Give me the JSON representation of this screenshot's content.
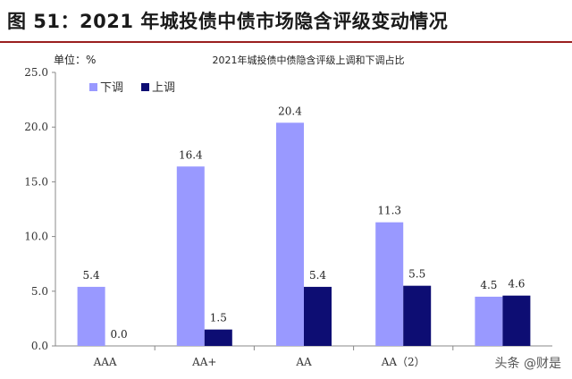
{
  "figure_title": "图 51：2021 年城投债中债市场隐含评级变动情况",
  "watermark": "头条 @财是",
  "chart_data": {
    "type": "bar",
    "title": "2021年城投债中债隐含评级上调和下调占比",
    "unit_label": "单位：%",
    "categories": [
      "AAA",
      "AA+",
      "AA",
      "AA（2）",
      ""
    ],
    "series": [
      {
        "name": "下调",
        "color": "#9999ff",
        "values": [
          5.4,
          16.4,
          20.4,
          11.3,
          4.5
        ]
      },
      {
        "name": "上调",
        "color": "#0d0d73",
        "values": [
          0.0,
          1.5,
          5.4,
          5.5,
          4.6
        ]
      }
    ],
    "value_labels": [
      [
        "5.4",
        "16.4",
        "20.4",
        "11.3",
        "4.5"
      ],
      [
        "0.0",
        "1.5",
        "5.4",
        "5.5",
        "4.6"
      ]
    ],
    "ylim": [
      0,
      25
    ],
    "yticks": [
      "0.0",
      "5.0",
      "10.0",
      "15.0",
      "20.0",
      "25.0"
    ],
    "grid": false,
    "legend_position": "top-left"
  }
}
